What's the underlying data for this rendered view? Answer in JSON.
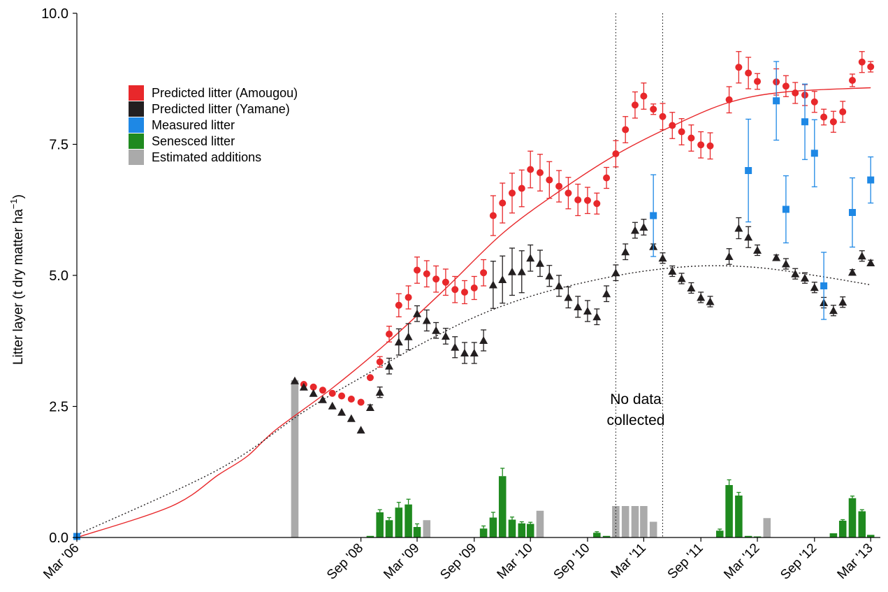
{
  "chart_data": {
    "type": "scatter",
    "ylabel_main": "Litter layer (t dry matter ha",
    "ylabel_sup": "−1",
    "ylabel_close": ")",
    "ylim": [
      0,
      10
    ],
    "yticks": [
      "0.0",
      "2.5",
      "5.0",
      "7.5",
      "10.0"
    ],
    "ytick_values": [
      0,
      2.5,
      5,
      7.5,
      10
    ],
    "xlim": [
      "2006-03-01",
      "2013-04-01"
    ],
    "xticks": [
      {
        "label": "Mar '06",
        "date": "2006-03-01"
      },
      {
        "label": "Sep '08",
        "date": "2008-09-01"
      },
      {
        "label": "Mar '09",
        "date": "2009-03-01"
      },
      {
        "label": "Sep '09",
        "date": "2009-09-01"
      },
      {
        "label": "Mar '10",
        "date": "2010-03-01"
      },
      {
        "label": "Sep '10",
        "date": "2010-09-01"
      },
      {
        "label": "Mar '11",
        "date": "2011-03-01"
      },
      {
        "label": "Sep '11",
        "date": "2011-09-01"
      },
      {
        "label": "Mar '12",
        "date": "2012-03-01"
      },
      {
        "label": "Sep '12",
        "date": "2012-09-01"
      },
      {
        "label": "Mar '13",
        "date": "2013-03-01"
      }
    ],
    "annotation": {
      "line1": "No data",
      "line2": "collected",
      "date_start": "2010-12-01",
      "date_end": "2011-05-01"
    },
    "legend_position": "top-left",
    "legend": [
      {
        "label": "Predicted litter (Amougou)",
        "color": "#e8282b"
      },
      {
        "label": "Predicted litter (Yamane)",
        "color": "#231f20"
      },
      {
        "label": "Measured litter",
        "color": "#1e88e5"
      },
      {
        "label": "Senesced litter",
        "color": "#1f8a1f"
      },
      {
        "label": "Estimated additions",
        "color": "#aaaaaa"
      }
    ],
    "series": [
      {
        "name": "Predicted litter (Amougou)",
        "kind": "points",
        "marker": "circle",
        "color": "#e8282b",
        "points": [
          [
            "2008-03-01",
            2.92,
            0
          ],
          [
            "2008-04-01",
            2.87,
            0
          ],
          [
            "2008-05-01",
            2.81,
            0
          ],
          [
            "2008-06-01",
            2.75,
            0
          ],
          [
            "2008-07-01",
            2.7,
            0
          ],
          [
            "2008-08-01",
            2.64,
            0
          ],
          [
            "2008-09-01",
            2.58,
            0
          ],
          [
            "2008-10-01",
            3.05,
            0
          ],
          [
            "2008-11-01",
            3.35,
            0.1
          ],
          [
            "2008-12-01",
            3.88,
            0.15
          ],
          [
            "2009-01-01",
            4.43,
            0.22
          ],
          [
            "2009-02-01",
            4.58,
            0.22
          ],
          [
            "2009-03-01",
            5.1,
            0.25
          ],
          [
            "2009-04-01",
            5.03,
            0.25
          ],
          [
            "2009-05-01",
            4.93,
            0.25
          ],
          [
            "2009-06-01",
            4.87,
            0.25
          ],
          [
            "2009-07-01",
            4.73,
            0.25
          ],
          [
            "2009-08-01",
            4.68,
            0.22
          ],
          [
            "2009-09-01",
            4.76,
            0.22
          ],
          [
            "2009-10-01",
            5.05,
            0.25
          ],
          [
            "2009-11-01",
            6.14,
            0.38
          ],
          [
            "2009-12-01",
            6.38,
            0.38
          ],
          [
            "2010-01-01",
            6.57,
            0.38
          ],
          [
            "2010-02-01",
            6.66,
            0.35
          ],
          [
            "2010-03-01",
            7.02,
            0.35
          ],
          [
            "2010-04-01",
            6.96,
            0.35
          ],
          [
            "2010-05-01",
            6.82,
            0.35
          ],
          [
            "2010-06-01",
            6.7,
            0.3
          ],
          [
            "2010-07-01",
            6.57,
            0.3
          ],
          [
            "2010-08-01",
            6.44,
            0.3
          ],
          [
            "2010-09-01",
            6.43,
            0.25
          ],
          [
            "2010-10-01",
            6.37,
            0.2
          ],
          [
            "2010-11-01",
            6.86,
            0.2
          ],
          [
            "2010-12-01",
            7.32,
            0.25
          ],
          [
            "2011-01-01",
            7.78,
            0.25
          ],
          [
            "2011-02-01",
            8.25,
            0.25
          ],
          [
            "2011-03-01",
            8.42,
            0.25
          ],
          [
            "2011-04-01",
            8.17,
            0.1
          ],
          [
            "2011-05-01",
            8.03,
            0.25
          ],
          [
            "2011-06-01",
            7.86,
            0.25
          ],
          [
            "2011-07-01",
            7.74,
            0.25
          ],
          [
            "2011-08-01",
            7.62,
            0.25
          ],
          [
            "2011-09-01",
            7.49,
            0.25
          ],
          [
            "2011-10-01",
            7.47,
            0.25
          ],
          [
            "2011-12-01",
            8.35,
            0.25
          ],
          [
            "2012-01-01",
            8.97,
            0.3
          ],
          [
            "2012-02-01",
            8.86,
            0.3
          ],
          [
            "2012-03-01",
            8.7,
            0.15
          ],
          [
            "2012-05-01",
            8.69,
            0.25
          ],
          [
            "2012-06-01",
            8.61,
            0.2
          ],
          [
            "2012-07-01",
            8.48,
            0.2
          ],
          [
            "2012-08-01",
            8.44,
            0.2
          ],
          [
            "2012-09-01",
            8.31,
            0.2
          ],
          [
            "2012-10-01",
            8.02,
            0.15
          ],
          [
            "2012-11-01",
            7.93,
            0.2
          ],
          [
            "2012-12-01",
            8.12,
            0.2
          ],
          [
            "2013-01-01",
            8.72,
            0.12
          ],
          [
            "2013-02-01",
            9.07,
            0.2
          ],
          [
            "2013-03-01",
            8.98,
            0.1
          ]
        ]
      },
      {
        "name": "Predicted litter (Yamane)",
        "kind": "points",
        "marker": "triangle",
        "color": "#231f20",
        "points": [
          [
            "2008-02-01",
            2.99,
            0
          ],
          [
            "2008-03-01",
            2.87,
            0
          ],
          [
            "2008-04-01",
            2.75,
            0
          ],
          [
            "2008-05-01",
            2.63,
            0
          ],
          [
            "2008-06-01",
            2.51,
            0
          ],
          [
            "2008-07-01",
            2.39,
            0
          ],
          [
            "2008-08-01",
            2.27,
            0
          ],
          [
            "2008-09-01",
            2.05,
            0
          ],
          [
            "2008-10-01",
            2.48,
            0.05
          ],
          [
            "2008-11-01",
            2.77,
            0.1
          ],
          [
            "2008-12-01",
            3.27,
            0.15
          ],
          [
            "2009-01-01",
            3.73,
            0.25
          ],
          [
            "2009-02-01",
            3.83,
            0.25
          ],
          [
            "2009-03-01",
            4.27,
            0.15
          ],
          [
            "2009-04-01",
            4.14,
            0.2
          ],
          [
            "2009-05-01",
            3.95,
            0.15
          ],
          [
            "2009-06-01",
            3.84,
            0.15
          ],
          [
            "2009-07-01",
            3.63,
            0.2
          ],
          [
            "2009-08-01",
            3.52,
            0.2
          ],
          [
            "2009-09-01",
            3.52,
            0.2
          ],
          [
            "2009-10-01",
            3.76,
            0.2
          ],
          [
            "2009-11-01",
            4.82,
            0.45
          ],
          [
            "2009-12-01",
            4.92,
            0.45
          ],
          [
            "2010-01-01",
            5.07,
            0.45
          ],
          [
            "2010-02-01",
            5.07,
            0.4
          ],
          [
            "2010-03-01",
            5.33,
            0.25
          ],
          [
            "2010-04-01",
            5.23,
            0.25
          ],
          [
            "2010-05-01",
            4.99,
            0.2
          ],
          [
            "2010-06-01",
            4.8,
            0.2
          ],
          [
            "2010-07-01",
            4.58,
            0.2
          ],
          [
            "2010-08-01",
            4.4,
            0.2
          ],
          [
            "2010-09-01",
            4.32,
            0.2
          ],
          [
            "2010-10-01",
            4.21,
            0.15
          ],
          [
            "2010-11-01",
            4.65,
            0.15
          ],
          [
            "2010-12-01",
            5.05,
            0.15
          ],
          [
            "2011-01-01",
            5.45,
            0.15
          ],
          [
            "2011-02-01",
            5.86,
            0.15
          ],
          [
            "2011-03-01",
            5.92,
            0.15
          ],
          [
            "2011-04-01",
            5.55,
            0.05
          ],
          [
            "2011-05-01",
            5.33,
            0.1
          ],
          [
            "2011-06-01",
            5.08,
            0.1
          ],
          [
            "2011-07-01",
            4.94,
            0.1
          ],
          [
            "2011-08-01",
            4.76,
            0.1
          ],
          [
            "2011-09-01",
            4.58,
            0.1
          ],
          [
            "2011-10-01",
            4.5,
            0.1
          ],
          [
            "2011-12-01",
            5.36,
            0.15
          ],
          [
            "2012-01-01",
            5.9,
            0.2
          ],
          [
            "2012-02-01",
            5.73,
            0.2
          ],
          [
            "2012-03-01",
            5.48,
            0.1
          ],
          [
            "2012-05-01",
            5.34,
            0.05
          ],
          [
            "2012-06-01",
            5.22,
            0.1
          ],
          [
            "2012-07-01",
            5.03,
            0.1
          ],
          [
            "2012-08-01",
            4.95,
            0.1
          ],
          [
            "2012-09-01",
            4.77,
            0.1
          ],
          [
            "2012-10-01",
            4.48,
            0.1
          ],
          [
            "2012-11-01",
            4.33,
            0.1
          ],
          [
            "2012-12-01",
            4.49,
            0.1
          ],
          [
            "2013-01-01",
            5.06,
            0.05
          ],
          [
            "2013-02-01",
            5.37,
            0.1
          ],
          [
            "2013-03-01",
            5.24,
            0.05
          ]
        ]
      },
      {
        "name": "Measured litter",
        "kind": "points",
        "marker": "square",
        "color": "#1e88e5",
        "points": [
          [
            "2006-03-01",
            0.02,
            0
          ],
          [
            "2011-04-01",
            6.14,
            0.78
          ],
          [
            "2012-02-01",
            7.0,
            0.98
          ],
          [
            "2012-05-01",
            8.33,
            0.75
          ],
          [
            "2012-06-01",
            6.26,
            0.64
          ],
          [
            "2012-08-01",
            7.93,
            0.72
          ],
          [
            "2012-09-01",
            7.33,
            0.64
          ],
          [
            "2012-10-01",
            4.8,
            0.64
          ],
          [
            "2013-01-01",
            6.2,
            0.66
          ],
          [
            "2013-03-01",
            6.82,
            0.44
          ]
        ]
      },
      {
        "name": "Senesced litter",
        "kind": "bars",
        "color": "#1f8a1f",
        "points": [
          [
            "2008-10-01",
            0.03,
            0
          ],
          [
            "2008-11-01",
            0.48,
            0.05
          ],
          [
            "2008-12-01",
            0.33,
            0.05
          ],
          [
            "2009-01-01",
            0.57,
            0.1
          ],
          [
            "2009-02-01",
            0.63,
            0.1
          ],
          [
            "2009-03-01",
            0.2,
            0.06
          ],
          [
            "2009-10-01",
            0.17,
            0.05
          ],
          [
            "2009-11-01",
            0.38,
            0.1
          ],
          [
            "2009-12-01",
            1.17,
            0.15
          ],
          [
            "2010-01-01",
            0.34,
            0.05
          ],
          [
            "2010-02-01",
            0.27,
            0.03
          ],
          [
            "2010-03-01",
            0.26,
            0.03
          ],
          [
            "2010-10-01",
            0.09,
            0.02
          ],
          [
            "2010-11-01",
            0.03,
            0
          ],
          [
            "2011-11-01",
            0.13,
            0.03
          ],
          [
            "2011-12-01",
            1.0,
            0.1
          ],
          [
            "2012-01-01",
            0.8,
            0.06
          ],
          [
            "2012-02-01",
            0.03,
            0
          ],
          [
            "2012-03-01",
            0.02,
            0
          ],
          [
            "2012-11-01",
            0.08,
            0
          ],
          [
            "2012-12-01",
            0.32,
            0.02
          ],
          [
            "2013-01-01",
            0.75,
            0.04
          ],
          [
            "2013-02-01",
            0.5,
            0.03
          ],
          [
            "2013-03-01",
            0.05,
            0
          ]
        ]
      },
      {
        "name": "Estimated additions",
        "kind": "bars",
        "color": "#aaaaaa",
        "points": [
          [
            "2008-02-01",
            3.0
          ],
          [
            "2009-04-01",
            0.33
          ],
          [
            "2010-04-01",
            0.51
          ],
          [
            "2010-12-01",
            0.6
          ],
          [
            "2011-01-01",
            0.6
          ],
          [
            "2011-02-01",
            0.6
          ],
          [
            "2011-03-01",
            0.6
          ],
          [
            "2011-04-01",
            0.3
          ],
          [
            "2012-04-01",
            0.37
          ]
        ]
      },
      {
        "name": "Amougou fit",
        "kind": "curve",
        "style": "solid",
        "color": "#e8282b",
        "points": [
          [
            "2006-03-01",
            0
          ],
          [
            "2007-01-01",
            0.6
          ],
          [
            "2007-06-01",
            1.2
          ],
          [
            "2007-09-01",
            1.55
          ],
          [
            "2007-12-01",
            2.05
          ],
          [
            "2008-06-01",
            2.85
          ],
          [
            "2008-12-01",
            3.75
          ],
          [
            "2009-06-01",
            4.75
          ],
          [
            "2009-12-01",
            5.8
          ],
          [
            "2010-06-01",
            6.6
          ],
          [
            "2010-12-01",
            7.3
          ],
          [
            "2011-06-01",
            7.85
          ],
          [
            "2011-12-01",
            8.3
          ],
          [
            "2012-06-01",
            8.5
          ],
          [
            "2013-03-01",
            8.58
          ]
        ]
      },
      {
        "name": "Yamane fit",
        "kind": "curve",
        "style": "dotted",
        "color": "#231f20",
        "points": [
          [
            "2006-03-01",
            0.05
          ],
          [
            "2007-06-01",
            1.3
          ],
          [
            "2008-03-01",
            2.4
          ],
          [
            "2008-09-01",
            3.05
          ],
          [
            "2009-03-01",
            3.65
          ],
          [
            "2009-09-01",
            4.2
          ],
          [
            "2010-03-01",
            4.6
          ],
          [
            "2010-09-01",
            4.88
          ],
          [
            "2011-03-01",
            5.08
          ],
          [
            "2011-09-01",
            5.18
          ],
          [
            "2012-03-01",
            5.15
          ],
          [
            "2012-09-01",
            5.0
          ],
          [
            "2013-03-01",
            4.82
          ]
        ]
      }
    ]
  }
}
